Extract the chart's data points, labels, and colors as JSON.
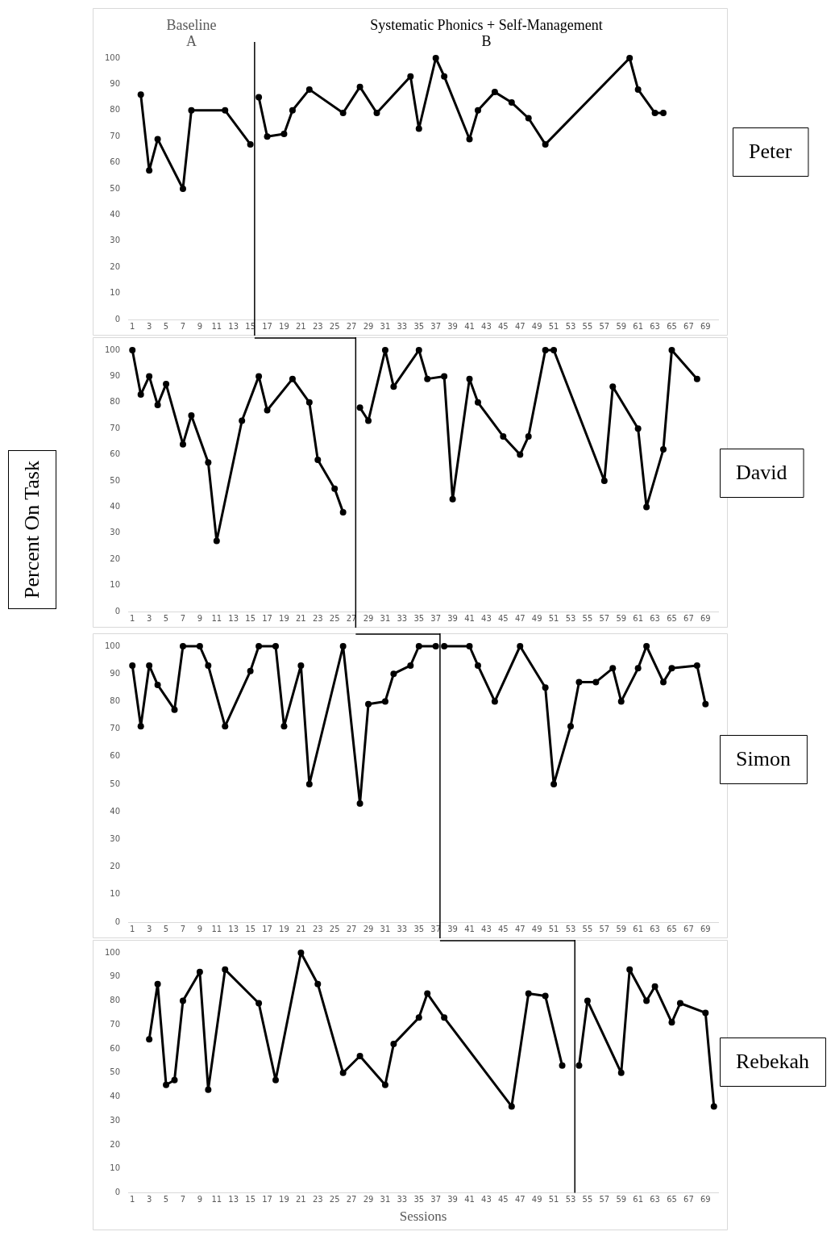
{
  "chart_data": [
    {
      "type": "line",
      "y2label": "Peter",
      "annotations": [
        "Baseline\nA",
        "Systematic Phonics + Self-Management\nB"
      ],
      "marker": "circle",
      "xlim": [
        0.5,
        70.5
      ],
      "xticks": [
        1,
        3,
        5,
        7,
        9,
        11,
        13,
        15,
        17,
        19,
        21,
        23,
        25,
        27,
        29,
        31,
        33,
        35,
        37,
        39,
        41,
        43,
        45,
        47,
        49,
        51,
        53,
        55,
        57,
        59,
        61,
        63,
        65,
        67,
        69
      ],
      "ylim": [
        0,
        100
      ],
      "yticks": [
        0,
        10,
        20,
        30,
        40,
        50,
        60,
        70,
        80,
        90,
        100
      ],
      "ref_lines": [
        {
          "axis": "x",
          "value": 15.5,
          "color": "#000000"
        }
      ],
      "series": [
        {
          "color": "#000000",
          "x": [
            2,
            3,
            4,
            7,
            8,
            12,
            15
          ],
          "values": [
            86,
            57,
            69,
            50,
            80,
            80,
            67
          ]
        },
        {
          "color": "#000000",
          "x": [
            16,
            17,
            19,
            20,
            22,
            26,
            28,
            30,
            34,
            35,
            37,
            38,
            41,
            42,
            44,
            46,
            48,
            50,
            60,
            61,
            63,
            64
          ],
          "values": [
            85,
            70,
            71,
            80,
            88,
            79,
            89,
            79,
            93,
            73,
            100,
            93,
            69,
            80,
            87,
            83,
            77,
            67,
            100,
            88,
            79,
            79
          ]
        }
      ]
    },
    {
      "type": "line",
      "y2label": "David",
      "ylabel": "Percent On Task",
      "marker": "circle",
      "xlim": [
        0.5,
        70.5
      ],
      "xticks": [
        1,
        3,
        5,
        7,
        9,
        11,
        13,
        15,
        17,
        19,
        21,
        23,
        25,
        27,
        29,
        31,
        33,
        35,
        37,
        39,
        41,
        43,
        45,
        47,
        49,
        51,
        53,
        55,
        57,
        59,
        61,
        63,
        65,
        67,
        69
      ],
      "ylim": [
        0,
        100
      ],
      "yticks": [
        0,
        10,
        20,
        30,
        40,
        50,
        60,
        70,
        80,
        90,
        100
      ],
      "ref_lines": [
        {
          "axis": "x",
          "value": 27.5,
          "color": "#000000"
        }
      ],
      "series": [
        {
          "color": "#000000",
          "x": [
            1,
            2,
            3,
            4,
            5,
            7,
            8,
            10,
            11,
            14,
            16,
            17,
            20,
            22,
            23,
            25,
            26
          ],
          "values": [
            100,
            83,
            90,
            79,
            87,
            64,
            75,
            57,
            27,
            73,
            90,
            77,
            89,
            80,
            58,
            47,
            38
          ]
        },
        {
          "color": "#000000",
          "x": [
            28,
            29,
            31,
            32,
            35,
            36,
            38,
            39,
            41,
            42,
            45,
            47,
            48,
            50,
            51,
            57,
            58,
            61,
            62,
            64,
            65,
            68
          ],
          "values": [
            78,
            73,
            100,
            86,
            100,
            89,
            90,
            43,
            89,
            80,
            67,
            60,
            67,
            100,
            100,
            50,
            86,
            70,
            40,
            62,
            100,
            89
          ]
        }
      ]
    },
    {
      "type": "line",
      "y2label": "Simon",
      "marker": "circle",
      "xlim": [
        0.5,
        70.5
      ],
      "xticks": [
        1,
        3,
        5,
        7,
        9,
        11,
        13,
        15,
        17,
        19,
        21,
        23,
        25,
        27,
        29,
        31,
        33,
        35,
        37,
        39,
        41,
        43,
        45,
        47,
        49,
        51,
        53,
        55,
        57,
        59,
        61,
        63,
        65,
        67,
        69
      ],
      "ylim": [
        0,
        100
      ],
      "yticks": [
        0,
        10,
        20,
        30,
        40,
        50,
        60,
        70,
        80,
        90,
        100
      ],
      "ref_lines": [
        {
          "axis": "x",
          "value": 37.5,
          "color": "#000000"
        }
      ],
      "series": [
        {
          "color": "#000000",
          "x": [
            1,
            2,
            3,
            4,
            6,
            7,
            9,
            10,
            12,
            15,
            16,
            18,
            19,
            21,
            22,
            26,
            28,
            29,
            31,
            32,
            34,
            35,
            37
          ],
          "values": [
            93,
            71,
            93,
            86,
            77,
            100,
            100,
            93,
            71,
            91,
            100,
            100,
            71,
            93,
            50,
            100,
            43,
            79,
            80,
            90,
            93,
            100,
            100
          ]
        },
        {
          "color": "#000000",
          "x": [
            38,
            41,
            42,
            44,
            47,
            50,
            51,
            53,
            54,
            56,
            58,
            59,
            61,
            62,
            64,
            65,
            68,
            69
          ],
          "values": [
            100,
            100,
            93,
            80,
            100,
            85,
            50,
            71,
            87,
            87,
            92,
            80,
            92,
            100,
            87,
            92,
            93,
            79
          ]
        }
      ]
    },
    {
      "type": "line",
      "y2label": "Rebekah",
      "xlabel": "Sessions",
      "marker": "circle",
      "xlim": [
        0.5,
        70.5
      ],
      "xticks": [
        1,
        3,
        5,
        7,
        9,
        11,
        13,
        15,
        17,
        19,
        21,
        23,
        25,
        27,
        29,
        31,
        33,
        35,
        37,
        39,
        41,
        43,
        45,
        47,
        49,
        51,
        53,
        55,
        57,
        59,
        61,
        63,
        65,
        67,
        69
      ],
      "ylim": [
        0,
        100
      ],
      "yticks": [
        0,
        10,
        20,
        30,
        40,
        50,
        60,
        70,
        80,
        90,
        100
      ],
      "ref_lines": [
        {
          "axis": "x",
          "value": 53.5,
          "color": "#000000"
        }
      ],
      "series": [
        {
          "color": "#000000",
          "x": [
            3,
            4,
            5,
            6,
            7,
            9,
            10,
            12,
            16,
            18,
            21,
            23,
            26,
            28,
            31,
            32,
            35,
            36,
            38,
            46,
            48,
            50,
            52
          ],
          "values": [
            64,
            87,
            45,
            47,
            80,
            92,
            43,
            93,
            79,
            47,
            100,
            87,
            50,
            57,
            45,
            62,
            73,
            83,
            73,
            36,
            83,
            82,
            53
          ]
        },
        {
          "color": "#000000",
          "x": [
            54,
            55,
            59,
            60,
            62,
            63,
            65,
            66,
            69,
            70
          ],
          "values": [
            53,
            80,
            50,
            93,
            80,
            86,
            71,
            79,
            75,
            36
          ]
        }
      ]
    }
  ]
}
